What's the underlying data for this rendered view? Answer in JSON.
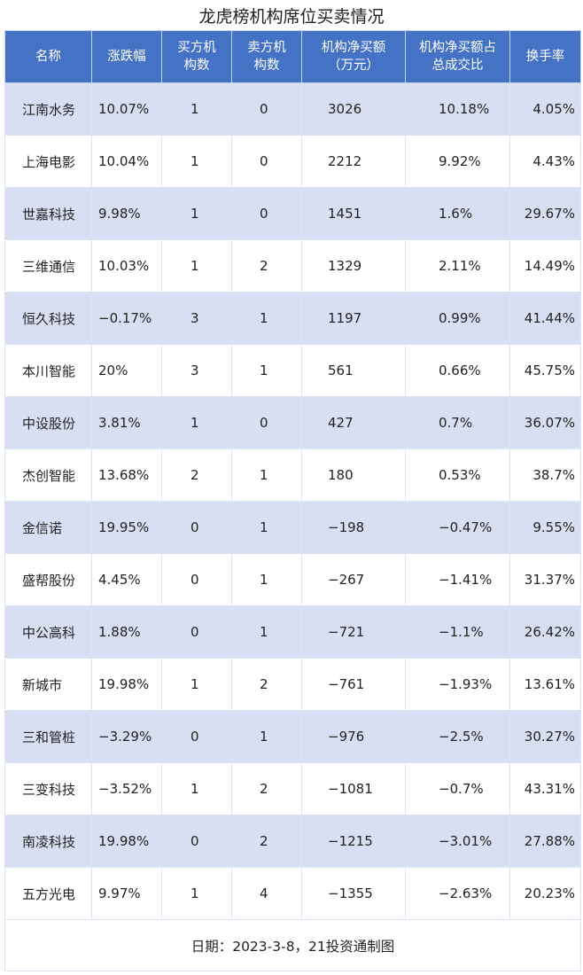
{
  "title": "龙虎榜机构席位买卖情况",
  "header_color": "#4472c4",
  "stripe_color": "#d9dff2",
  "columns": [
    "名称",
    "涨跌幅",
    "买方机构数",
    "卖方机构数",
    "机构净买额（万元）",
    "机构净买额占总成交比",
    "换手率"
  ],
  "column_lines": [
    [
      "名称"
    ],
    [
      "涨跌幅"
    ],
    [
      "买方机",
      "构数"
    ],
    [
      "卖方机",
      "构数"
    ],
    [
      "机构净买额",
      "（万元）"
    ],
    [
      "机构净买额占",
      "总成交比"
    ],
    [
      "换手率"
    ]
  ],
  "rows": [
    [
      "江南水务",
      "10.07%",
      "1",
      "0",
      "3026",
      "10.18%",
      "4.05%"
    ],
    [
      "上海电影",
      "10.04%",
      "1",
      "0",
      "2212",
      "9.92%",
      "4.43%"
    ],
    [
      "世嘉科技",
      "9.98%",
      "1",
      "0",
      "1451",
      "1.6%",
      "29.67%"
    ],
    [
      "三维通信",
      "10.03%",
      "1",
      "2",
      "1329",
      "2.11%",
      "14.49%"
    ],
    [
      "恒久科技",
      "−0.17%",
      "3",
      "1",
      "1197",
      "0.99%",
      "41.44%"
    ],
    [
      "本川智能",
      "20%",
      "3",
      "1",
      "561",
      "0.66%",
      "45.75%"
    ],
    [
      "中设股份",
      "3.81%",
      "1",
      "0",
      "427",
      "0.7%",
      "36.07%"
    ],
    [
      "杰创智能",
      "13.68%",
      "2",
      "1",
      "180",
      "0.53%",
      "38.7%"
    ],
    [
      "金信诺",
      "19.95%",
      "0",
      "1",
      "−198",
      "−0.47%",
      "9.55%"
    ],
    [
      "盛帮股份",
      "4.45%",
      "0",
      "1",
      "−267",
      "−1.41%",
      "31.37%"
    ],
    [
      "中公高科",
      "1.88%",
      "0",
      "1",
      "−721",
      "−1.1%",
      "26.42%"
    ],
    [
      "新城市",
      "19.98%",
      "1",
      "2",
      "−761",
      "−1.93%",
      "13.61%"
    ],
    [
      "三和管桩",
      "−3.29%",
      "0",
      "1",
      "−976",
      "−2.5%",
      "30.27%"
    ],
    [
      "三变科技",
      "−3.52%",
      "1",
      "2",
      "−1081",
      "−0.7%",
      "43.31%"
    ],
    [
      "南凌科技",
      "19.98%",
      "0",
      "2",
      "−1215",
      "−3.01%",
      "27.88%"
    ],
    [
      "五方光电",
      "9.97%",
      "1",
      "4",
      "−1355",
      "−2.63%",
      "20.23%"
    ]
  ],
  "footer": "日期：2023-3-8，21投资通制图"
}
